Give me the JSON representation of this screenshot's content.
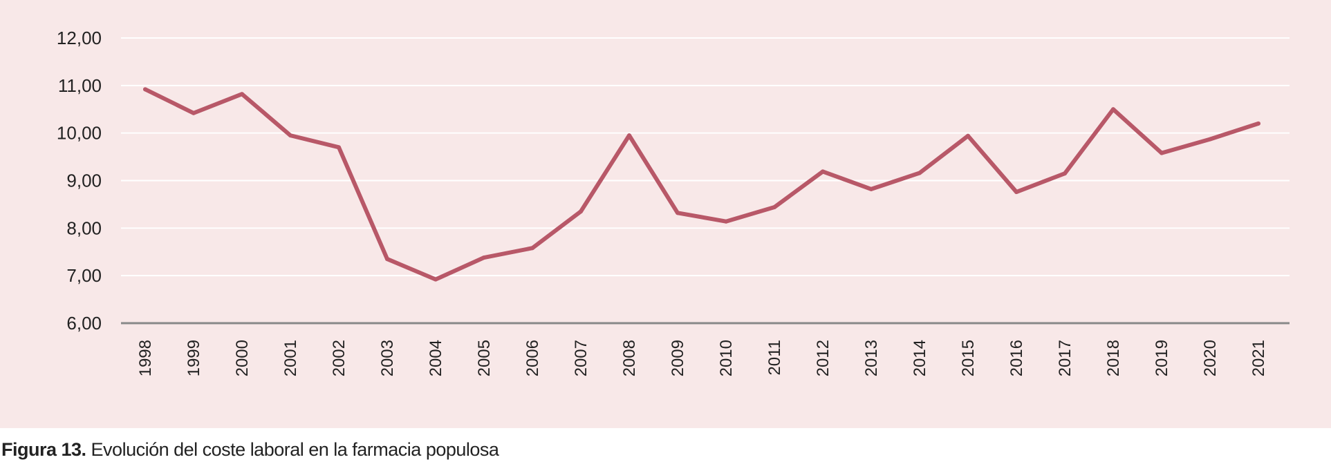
{
  "caption": {
    "label": "Figura 13.",
    "text": " Evolución del coste laboral en la farmacia populosa"
  },
  "colors": {
    "background": "#f8e8e8",
    "line": "#b85868",
    "gridline": "#ffffff",
    "baseline": "#888888"
  },
  "chart_data": {
    "type": "line",
    "title": "",
    "xlabel": "",
    "ylabel": "",
    "ylim": [
      6,
      12
    ],
    "yticks": [
      "6,00",
      "7,00",
      "8,00",
      "9,00",
      "10,00",
      "11,00",
      "12,00"
    ],
    "grid": true,
    "legend": "none",
    "x": [
      "1998",
      "1999",
      "2000",
      "2001",
      "2002",
      "2003",
      "2004",
      "2005",
      "2006",
      "2007",
      "2008",
      "2009",
      "2010",
      "2011",
      "2012",
      "2013",
      "2014",
      "2015",
      "2016",
      "2017",
      "2018",
      "2019",
      "2020",
      "2021"
    ],
    "series": [
      {
        "values": [
          10.92,
          10.42,
          10.82,
          9.95,
          9.7,
          7.35,
          6.92,
          7.38,
          7.58,
          8.35,
          9.95,
          8.32,
          8.14,
          8.44,
          9.19,
          8.82,
          9.16,
          9.94,
          8.76,
          9.15,
          10.5,
          9.58,
          9.87,
          10.2
        ]
      }
    ]
  }
}
